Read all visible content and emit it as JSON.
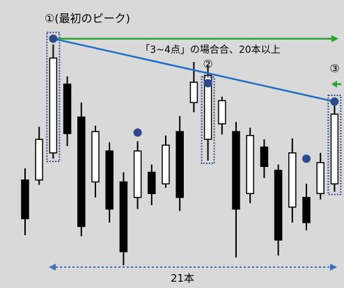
{
  "chart_data": {
    "type": "candlestick",
    "title": "",
    "xlabel": "",
    "ylabel": "",
    "grid": false,
    "count": 21,
    "candles": [
      {
        "open": 90,
        "close": 50,
        "high": 102,
        "low": 33
      },
      {
        "open": 90,
        "close": 132,
        "high": 145,
        "low": 85
      },
      {
        "open": 118,
        "close": 216,
        "high": 230,
        "low": 112
      },
      {
        "open": 189,
        "close": 138,
        "high": 197,
        "low": 125
      },
      {
        "open": 155,
        "close": 42,
        "high": 170,
        "low": 32
      },
      {
        "open": 88,
        "close": 140,
        "high": 146,
        "low": 72
      },
      {
        "open": 120,
        "close": 60,
        "high": 129,
        "low": 46
      },
      {
        "open": 88,
        "close": 16,
        "high": 98,
        "low": 2
      },
      {
        "open": 72,
        "close": 120,
        "high": 130,
        "low": 60
      },
      {
        "open": 98,
        "close": 76,
        "high": 106,
        "low": 64
      },
      {
        "open": 86,
        "close": 126,
        "high": 136,
        "low": 82
      },
      {
        "open": 140,
        "close": 72,
        "high": 156,
        "low": 58
      },
      {
        "open": 170,
        "close": 191,
        "high": 212,
        "low": 160
      },
      {
        "open": 132,
        "close": 198,
        "high": 208,
        "low": 110
      },
      {
        "open": 148,
        "close": 172,
        "high": 176,
        "low": 137
      },
      {
        "open": 140,
        "close": 60,
        "high": 150,
        "low": 10
      },
      {
        "open": 76,
        "close": 136,
        "high": 144,
        "low": 66
      },
      {
        "open": 124,
        "close": 104,
        "high": 132,
        "low": 92
      },
      {
        "open": 100,
        "close": 28,
        "high": 106,
        "low": 12
      },
      {
        "open": 62,
        "close": 118,
        "high": 133,
        "low": 46
      },
      {
        "open": 72,
        "close": 46,
        "high": 86,
        "low": 38
      },
      {
        "open": 76,
        "close": 108,
        "high": 118,
        "low": 70
      },
      {
        "open": 86,
        "close": 158,
        "high": 170,
        "low": 78
      }
    ],
    "markers": [
      {
        "index": 2,
        "label": "①(最初のピーク)",
        "y": 236
      },
      {
        "index": 8,
        "label": "",
        "y": 139
      },
      {
        "index": 13,
        "label": "②",
        "y": 190
      },
      {
        "index": 20,
        "label": "",
        "y": 112
      },
      {
        "index": 22,
        "label": "③",
        "y": 171
      }
    ],
    "annotations": {
      "trend_note": "「3~4点」の場合合、20本以上",
      "span_label": "21本"
    }
  },
  "colors": {
    "background": "#d9d9d9",
    "bullish_fill": "#ffffff",
    "bearish_fill": "#000000",
    "candle_stroke": "#000000",
    "marker": "#2f4a8c",
    "trendline": "#1f6fc6",
    "horizontal_arrow": "#2ca02c",
    "dotted_box": "#2f4a8c",
    "span_arrow": "#3b6fbf",
    "text": "#000000"
  }
}
